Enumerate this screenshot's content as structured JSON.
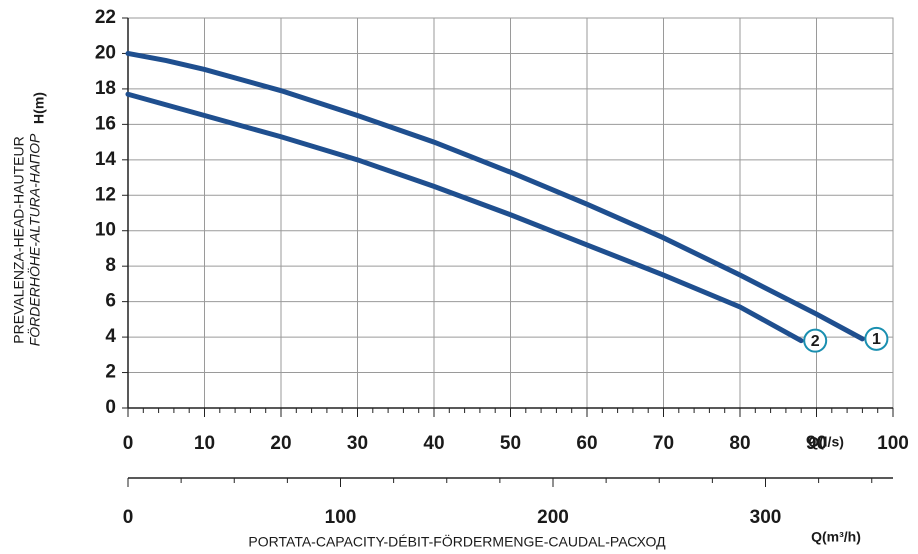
{
  "chart_data": {
    "type": "line",
    "ylabel": [
      "PREVALENZA-HEAD-HAUTEUR",
      "FÖRDERHÖHE-ALTURA-НАПОР"
    ],
    "yunit": "H(m)",
    "xlabel": "PORTATA-CAPACITY-DÉBIT-FÖRDERMENGE-CAUDAL-РАСХОД",
    "xunit": "Q(l/s)",
    "x2unit": "Q(m³/h)",
    "xlim": [
      0,
      100
    ],
    "xticks": [
      0,
      10,
      20,
      30,
      40,
      50,
      60,
      70,
      80,
      90,
      100
    ],
    "x2lim": [
      0,
      360
    ],
    "x2ticks": [
      0,
      100,
      200,
      300
    ],
    "ylim": [
      0,
      22
    ],
    "yticks": [
      0,
      2,
      4,
      6,
      8,
      10,
      12,
      14,
      16,
      18,
      20,
      22
    ],
    "grid": true,
    "series": [
      {
        "name": "1",
        "color": "#1f4f8f",
        "x": [
          0,
          5,
          10,
          20,
          30,
          40,
          50,
          60,
          70,
          80,
          90,
          96
        ],
        "values": [
          20,
          19.6,
          19.1,
          17.9,
          16.5,
          15,
          13.3,
          11.5,
          9.6,
          7.5,
          5.3,
          3.9
        ]
      },
      {
        "name": "2",
        "color": "#1f4f8f",
        "x": [
          0,
          10,
          20,
          30,
          40,
          50,
          60,
          70,
          80,
          88
        ],
        "values": [
          17.7,
          16.5,
          15.3,
          14,
          12.5,
          10.9,
          9.2,
          7.5,
          5.7,
          3.8
        ]
      }
    ]
  }
}
